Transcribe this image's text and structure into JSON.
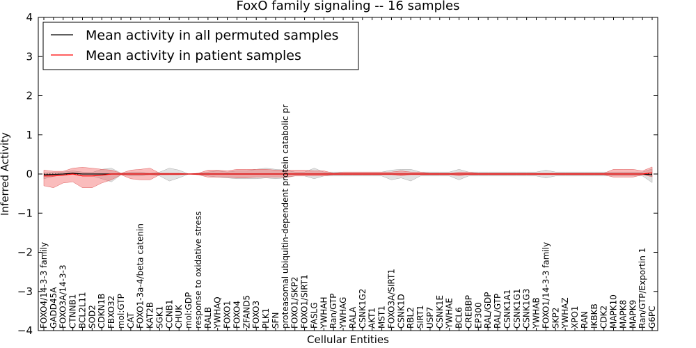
{
  "chart_data": {
    "type": "line",
    "title": "FoxO family signaling -- 16 samples",
    "xlabel": "Cellular Entities",
    "ylabel": "Inferred Activity",
    "ylim": [
      -4,
      4
    ],
    "yticks": [
      -4,
      -3,
      -2,
      -1,
      0,
      1,
      2,
      3,
      4
    ],
    "legend_position": "top-left",
    "categories": [
      "FOXO4/14-3-3 family",
      "GADD45A",
      "FOXO3A/14-3-3",
      "CTNNB1",
      "BCL2L11",
      "SOD2",
      "CDKN1B",
      "FBXO32",
      "mol:GTP",
      "CAT",
      "FOXO1-3a-4/beta catenin",
      "KAT2B",
      "SGK1",
      "CCNB1",
      "CHUK",
      "mol:GDP",
      "response to oxidative stress",
      "RALB",
      "YWHAQ",
      "FOXO1",
      "FOXO4",
      "ZFAND5",
      "FOXO3",
      "PLK1",
      "SFN",
      "proteasomal ubiquitin-dependent protein catabolic pr",
      "FOXO1/SKP2",
      "FOXO1/SIRT1",
      "FASLG",
      "YWHAH",
      "Ran/GTP",
      "YWHAG",
      "RALA",
      "CSNK1G2",
      "AKT1",
      "MST1",
      "FOXO3A/SIRT1",
      "CSNK1D",
      "RBL2",
      "SIRT1",
      "USP7",
      "CSNK1E",
      "YWHAE",
      "BCL6",
      "CREBBP",
      "EP300",
      "RAL/GDP",
      "RAL/GTP",
      "CSNK1A1",
      "CSNK1G1",
      "CSNK1G3",
      "YWHAB",
      "FOXO1/14-3-3 family",
      "SKP2",
      "YWHAZ",
      "XPO1",
      "RAN",
      "IKBKB",
      "CDK2",
      "MAPK10",
      "MAPK8",
      "MAPK9",
      "Ran/GTP/Exportin 1",
      "G6PC"
    ],
    "series": [
      {
        "name": "Mean activity in all permuted samples",
        "color": "#000000",
        "values": [
          -0.02,
          -0.01,
          0.0,
          0.02,
          0.0,
          0.0,
          0.0,
          0.0,
          0.0,
          0.0,
          0.0,
          0.0,
          0.0,
          0.0,
          0.0,
          0.0,
          0.0,
          0.0,
          0.0,
          0.0,
          0.0,
          0.0,
          0.0,
          0.0,
          0.0,
          0.0,
          0.0,
          0.0,
          0.0,
          0.0,
          0.0,
          0.0,
          0.0,
          0.0,
          0.0,
          0.0,
          0.0,
          0.0,
          0.0,
          0.0,
          0.0,
          0.0,
          0.0,
          0.0,
          0.0,
          0.0,
          0.0,
          0.0,
          0.0,
          0.0,
          0.0,
          0.0,
          0.0,
          0.0,
          0.0,
          0.0,
          0.0,
          0.0,
          0.0,
          0.0,
          0.0,
          0.0,
          0.0,
          -0.02
        ],
        "band_upper": [
          0.05,
          0.05,
          0.05,
          0.06,
          0.05,
          0.04,
          0.12,
          0.15,
          0.02,
          0.05,
          0.05,
          0.02,
          0.05,
          0.15,
          0.1,
          0.0,
          0.02,
          0.05,
          0.08,
          0.05,
          0.08,
          0.08,
          0.12,
          0.15,
          0.12,
          0.1,
          0.05,
          0.05,
          0.15,
          0.05,
          0.05,
          0.05,
          0.05,
          0.05,
          0.05,
          0.05,
          0.1,
          0.12,
          0.12,
          0.05,
          0.05,
          0.05,
          0.05,
          0.12,
          0.05,
          0.05,
          0.05,
          0.05,
          0.05,
          0.05,
          0.05,
          0.05,
          0.1,
          0.05,
          0.05,
          0.05,
          0.05,
          0.05,
          0.05,
          0.05,
          0.05,
          0.05,
          0.05,
          0.15
        ],
        "band_lower": [
          -0.1,
          -0.05,
          -0.02,
          -0.02,
          -0.05,
          -0.05,
          -0.12,
          -0.2,
          -0.02,
          -0.05,
          -0.05,
          -0.02,
          -0.05,
          -0.18,
          -0.1,
          0.0,
          -0.02,
          -0.05,
          -0.08,
          -0.1,
          -0.12,
          -0.12,
          -0.12,
          -0.1,
          -0.12,
          -0.1,
          -0.05,
          -0.05,
          -0.12,
          -0.05,
          -0.05,
          -0.05,
          -0.05,
          -0.05,
          -0.05,
          -0.05,
          -0.15,
          -0.1,
          -0.18,
          -0.05,
          -0.05,
          -0.05,
          -0.05,
          -0.15,
          -0.05,
          -0.05,
          -0.05,
          -0.05,
          -0.05,
          -0.05,
          -0.05,
          -0.05,
          -0.1,
          -0.05,
          -0.05,
          -0.05,
          -0.05,
          -0.05,
          -0.05,
          -0.05,
          -0.05,
          -0.05,
          -0.05,
          -0.2
        ]
      },
      {
        "name": "Mean activity in patient samples",
        "color": "#ff0000",
        "values": [
          -0.05,
          -0.05,
          -0.03,
          0.0,
          -0.05,
          -0.05,
          -0.03,
          0.0,
          0.0,
          0.0,
          0.0,
          0.0,
          0.0,
          0.0,
          0.0,
          0.0,
          0.0,
          0.0,
          0.0,
          0.0,
          0.0,
          0.0,
          0.0,
          0.0,
          0.0,
          0.0,
          0.0,
          0.0,
          0.0,
          0.0,
          0.0,
          0.0,
          0.0,
          0.0,
          0.0,
          0.0,
          0.0,
          0.0,
          0.0,
          0.0,
          0.0,
          0.0,
          0.0,
          0.0,
          0.0,
          0.0,
          0.0,
          0.0,
          0.0,
          0.0,
          0.0,
          0.0,
          0.0,
          0.0,
          0.0,
          0.0,
          0.0,
          0.0,
          0.0,
          0.0,
          0.0,
          0.0,
          0.0,
          0.03
        ],
        "band_upper": [
          0.15,
          0.12,
          0.1,
          0.15,
          0.22,
          0.2,
          0.15,
          0.1,
          0.02,
          0.1,
          0.12,
          0.15,
          0.02,
          0.02,
          0.02,
          0.0,
          0.02,
          0.1,
          0.1,
          0.08,
          0.12,
          0.12,
          0.12,
          0.12,
          0.1,
          0.1,
          0.1,
          0.1,
          0.08,
          0.08,
          0.02,
          0.05,
          0.05,
          0.05,
          0.05,
          0.05,
          0.05,
          0.08,
          0.05,
          0.05,
          0.02,
          0.02,
          0.02,
          0.05,
          0.05,
          0.02,
          0.02,
          0.02,
          0.02,
          0.02,
          0.02,
          0.02,
          0.02,
          0.02,
          0.02,
          0.02,
          0.02,
          0.02,
          0.02,
          0.12,
          0.12,
          0.12,
          0.08,
          0.15
        ],
        "band_lower": [
          -0.25,
          -0.3,
          -0.2,
          -0.2,
          -0.3,
          -0.3,
          -0.2,
          -0.15,
          -0.02,
          -0.12,
          -0.15,
          -0.15,
          -0.02,
          -0.02,
          -0.02,
          0.0,
          -0.02,
          -0.08,
          -0.08,
          -0.08,
          -0.1,
          -0.1,
          -0.08,
          -0.08,
          -0.08,
          -0.08,
          -0.05,
          -0.05,
          -0.05,
          -0.05,
          -0.02,
          -0.02,
          -0.02,
          -0.02,
          -0.02,
          -0.02,
          -0.02,
          -0.05,
          -0.02,
          -0.02,
          -0.02,
          -0.02,
          -0.02,
          -0.05,
          -0.02,
          -0.02,
          -0.02,
          -0.02,
          -0.02,
          -0.02,
          -0.02,
          -0.02,
          -0.02,
          -0.02,
          -0.02,
          -0.02,
          -0.02,
          -0.02,
          -0.02,
          -0.08,
          -0.08,
          -0.08,
          -0.02,
          -0.1
        ]
      }
    ],
    "baseline": 0,
    "baseline_style": "dotted"
  }
}
